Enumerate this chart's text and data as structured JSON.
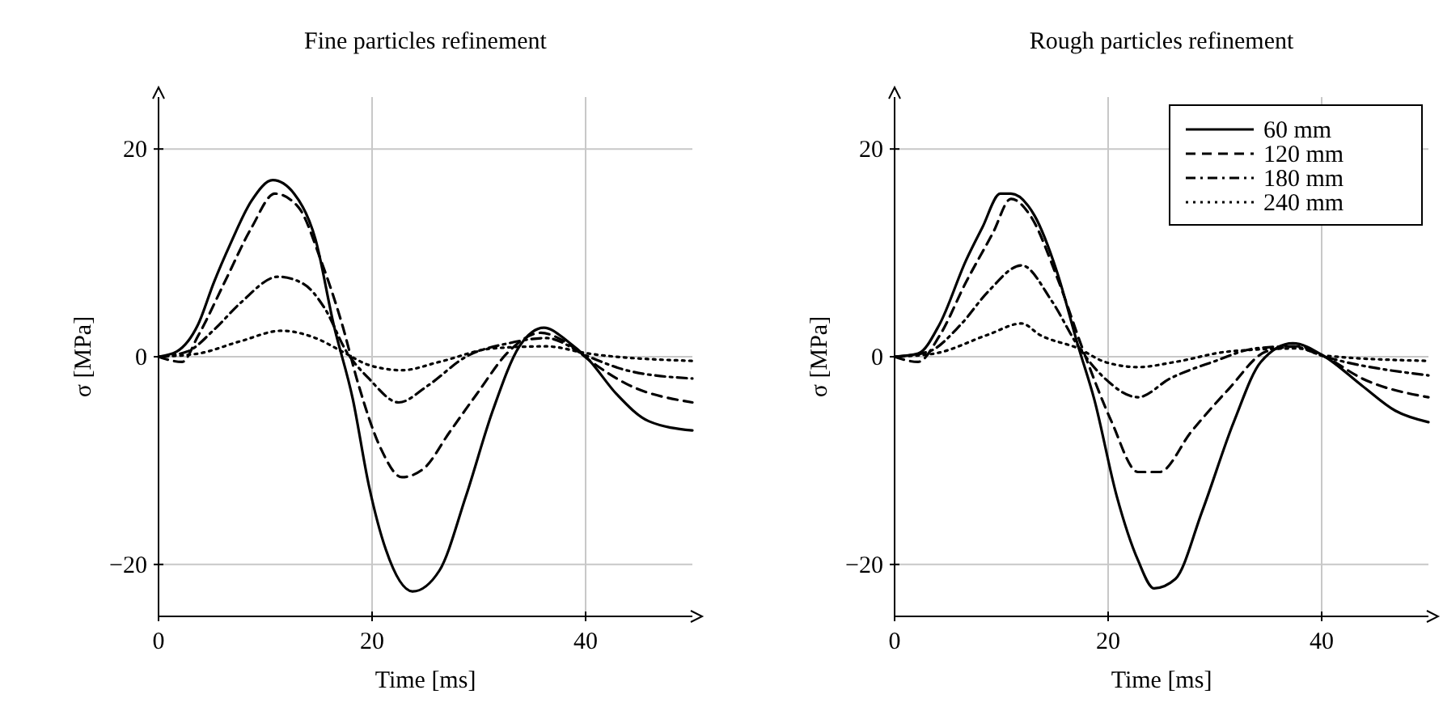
{
  "chart_data": [
    {
      "type": "line",
      "title": "Fine particles refinement",
      "xlabel": "Time [ms]",
      "ylabel": "σ [MPa]",
      "xlim": [
        0,
        50
      ],
      "ylim": [
        -25,
        25
      ],
      "xticks": [
        0,
        20,
        40
      ],
      "yticks": [
        -20,
        0,
        20
      ],
      "grid": true,
      "legend": false,
      "marker": "none",
      "series": [
        {
          "color": "#000000",
          "line_style": "solid",
          "x": [
            0,
            1.7,
            3.7,
            5.2,
            6.7,
            8.7,
            10.7,
            12.7,
            14.7,
            16.4,
            18.2,
            19.7,
            21.3,
            23.8,
            26.3,
            28.8,
            31.3,
            33.8,
            36.1,
            38.3,
            40.3,
            42.9,
            45.9,
            50
          ],
          "values": [
            0,
            0.5,
            3.1,
            7.2,
            10.8,
            15,
            17,
            15.7,
            11.3,
            3.1,
            -4.1,
            -12.4,
            -18.6,
            -22.6,
            -20.6,
            -13.4,
            -5.2,
            1,
            2.8,
            1.5,
            -0.3,
            -3.6,
            -6.2,
            -7.1
          ]
        },
        {
          "color": "#000000",
          "line_style": "dashed",
          "x": [
            0,
            2.2,
            3.7,
            6.2,
            8.7,
            10.9,
            13.1,
            15.2,
            17.2,
            18.7,
            20.8,
            22.8,
            24.8,
            27.3,
            29.8,
            32.8,
            35.8,
            38.3,
            40.3,
            43.8,
            50
          ],
          "values": [
            0,
            -0.5,
            2,
            7.2,
            12.4,
            15.7,
            14.4,
            9.3,
            3.1,
            -2.6,
            -8.8,
            -11.6,
            -10.8,
            -7.2,
            -3.6,
            0.5,
            2.3,
            1.3,
            -0.3,
            -2.6,
            -4.4
          ]
        },
        {
          "color": "#000000",
          "line_style": "dashdot",
          "x": [
            0,
            2.7,
            5.2,
            7.7,
            11.2,
            13.6,
            15.6,
            17.6,
            19.7,
            22.5,
            25.2,
            28.8,
            32.8,
            36.3,
            40.3,
            43.8,
            50
          ],
          "values": [
            0,
            0.5,
            2.6,
            5.2,
            7.7,
            7,
            4.6,
            0.5,
            -2.1,
            -4.4,
            -2.8,
            0,
            1.3,
            1.8,
            0,
            -1.3,
            -2.1
          ]
        },
        {
          "color": "#000000",
          "line_style": "dotted",
          "x": [
            0,
            3.7,
            7.7,
            11.5,
            14.7,
            17.2,
            19.7,
            22.8,
            26.3,
            31.3,
            36.3,
            40.3,
            50
          ],
          "values": [
            0,
            0.3,
            1.5,
            2.5,
            1.8,
            0.5,
            -0.8,
            -1.3,
            -0.5,
            0.8,
            1,
            0.3,
            -0.4
          ]
        }
      ]
    },
    {
      "type": "line",
      "title": "Rough particles refinement",
      "xlabel": "Time [ms]",
      "ylabel": "σ [MPa]",
      "xlim": [
        0,
        50
      ],
      "ylim": [
        -25,
        25
      ],
      "xticks": [
        0,
        20,
        40
      ],
      "yticks": [
        -20,
        0,
        20
      ],
      "grid": true,
      "legend": "top right",
      "marker": "none",
      "series": [
        {
          "name": "60 mm",
          "color": "#000000",
          "line_style": "solid",
          "x": [
            0,
            2.2,
            4.2,
            6.7,
            8.2,
            9.9,
            10.9,
            13.1,
            15.2,
            17.2,
            18.7,
            20.8,
            22.8,
            24.3,
            26.3,
            28.8,
            31.8,
            34.3,
            37.3,
            40.3,
            43.8,
            46.9,
            50
          ],
          "values": [
            0,
            0.3,
            3.1,
            9.3,
            12.4,
            15.7,
            15.7,
            13.6,
            8.2,
            1,
            -4.1,
            -13.4,
            -19.6,
            -22.3,
            -21.4,
            -14.9,
            -6.2,
            -0.5,
            1.3,
            0,
            -2.8,
            -5.2,
            -6.3
          ]
        },
        {
          "name": "120 mm",
          "color": "#000000",
          "line_style": "dashed",
          "x": [
            0,
            2.2,
            4.2,
            6.7,
            9.2,
            10.9,
            12.7,
            15.2,
            17.7,
            20.3,
            22.8,
            24.8,
            27.8,
            31.3,
            34.8,
            37.8,
            40.3,
            43.8,
            50
          ],
          "values": [
            0,
            -0.5,
            2,
            7.2,
            11.9,
            15.2,
            13.6,
            7.7,
            0.5,
            -6.2,
            -11.1,
            -11.1,
            -7.2,
            -3.1,
            0.5,
            1,
            0,
            -2.1,
            -3.9
          ]
        },
        {
          "name": "180 mm",
          "color": "#000000",
          "line_style": "dashdot",
          "x": [
            0,
            3.2,
            6.2,
            8.7,
            11.9,
            14.7,
            17.2,
            19.7,
            22.8,
            25.8,
            29.8,
            33.8,
            37.3,
            40.3,
            50
          ],
          "values": [
            0,
            0.5,
            3.1,
            6.2,
            8.8,
            5.4,
            1,
            -2.1,
            -3.9,
            -2.1,
            -0.5,
            0.8,
            1,
            0,
            -1.8
          ]
        },
        {
          "name": "240 mm",
          "color": "#000000",
          "line_style": "dotted",
          "x": [
            0,
            3.7,
            8.7,
            11.9,
            13.6,
            17.2,
            19.7,
            22.8,
            26.3,
            31.3,
            37.8,
            40.3,
            50
          ],
          "values": [
            0,
            0.3,
            2.1,
            3.2,
            2.1,
            0.8,
            -0.5,
            -1,
            -0.5,
            0.5,
            0.8,
            0.1,
            -0.4
          ]
        }
      ]
    }
  ]
}
